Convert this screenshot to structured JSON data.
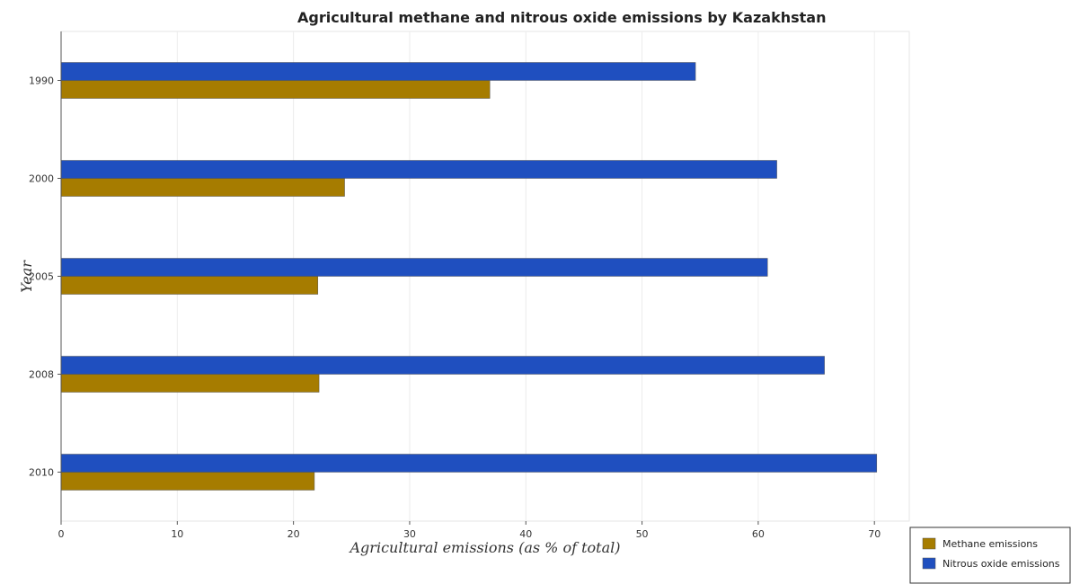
{
  "chart_data": {
    "type": "bar",
    "orientation": "horizontal",
    "title": "Agricultural methane and nitrous oxide emissions by Kazakhstan",
    "xlabel": "Agricultural emissions (as % of total)",
    "ylabel": "Year",
    "categories": [
      "1990",
      "2000",
      "2005",
      "2008",
      "2010"
    ],
    "series": [
      {
        "name": "Methane emissions",
        "color": "#a67c00",
        "values": [
          36.9,
          24.4,
          22.1,
          22.2,
          21.8
        ]
      },
      {
        "name": "Nitrous oxide emissions",
        "color": "#1f4fbf",
        "values": [
          54.6,
          61.6,
          60.8,
          65.7,
          70.2
        ]
      }
    ],
    "xlim": [
      0,
      73
    ],
    "xticks": [
      "0",
      "10",
      "20",
      "30",
      "40",
      "50",
      "60",
      "70"
    ],
    "grid": true,
    "legend_position": "bottom-right"
  }
}
